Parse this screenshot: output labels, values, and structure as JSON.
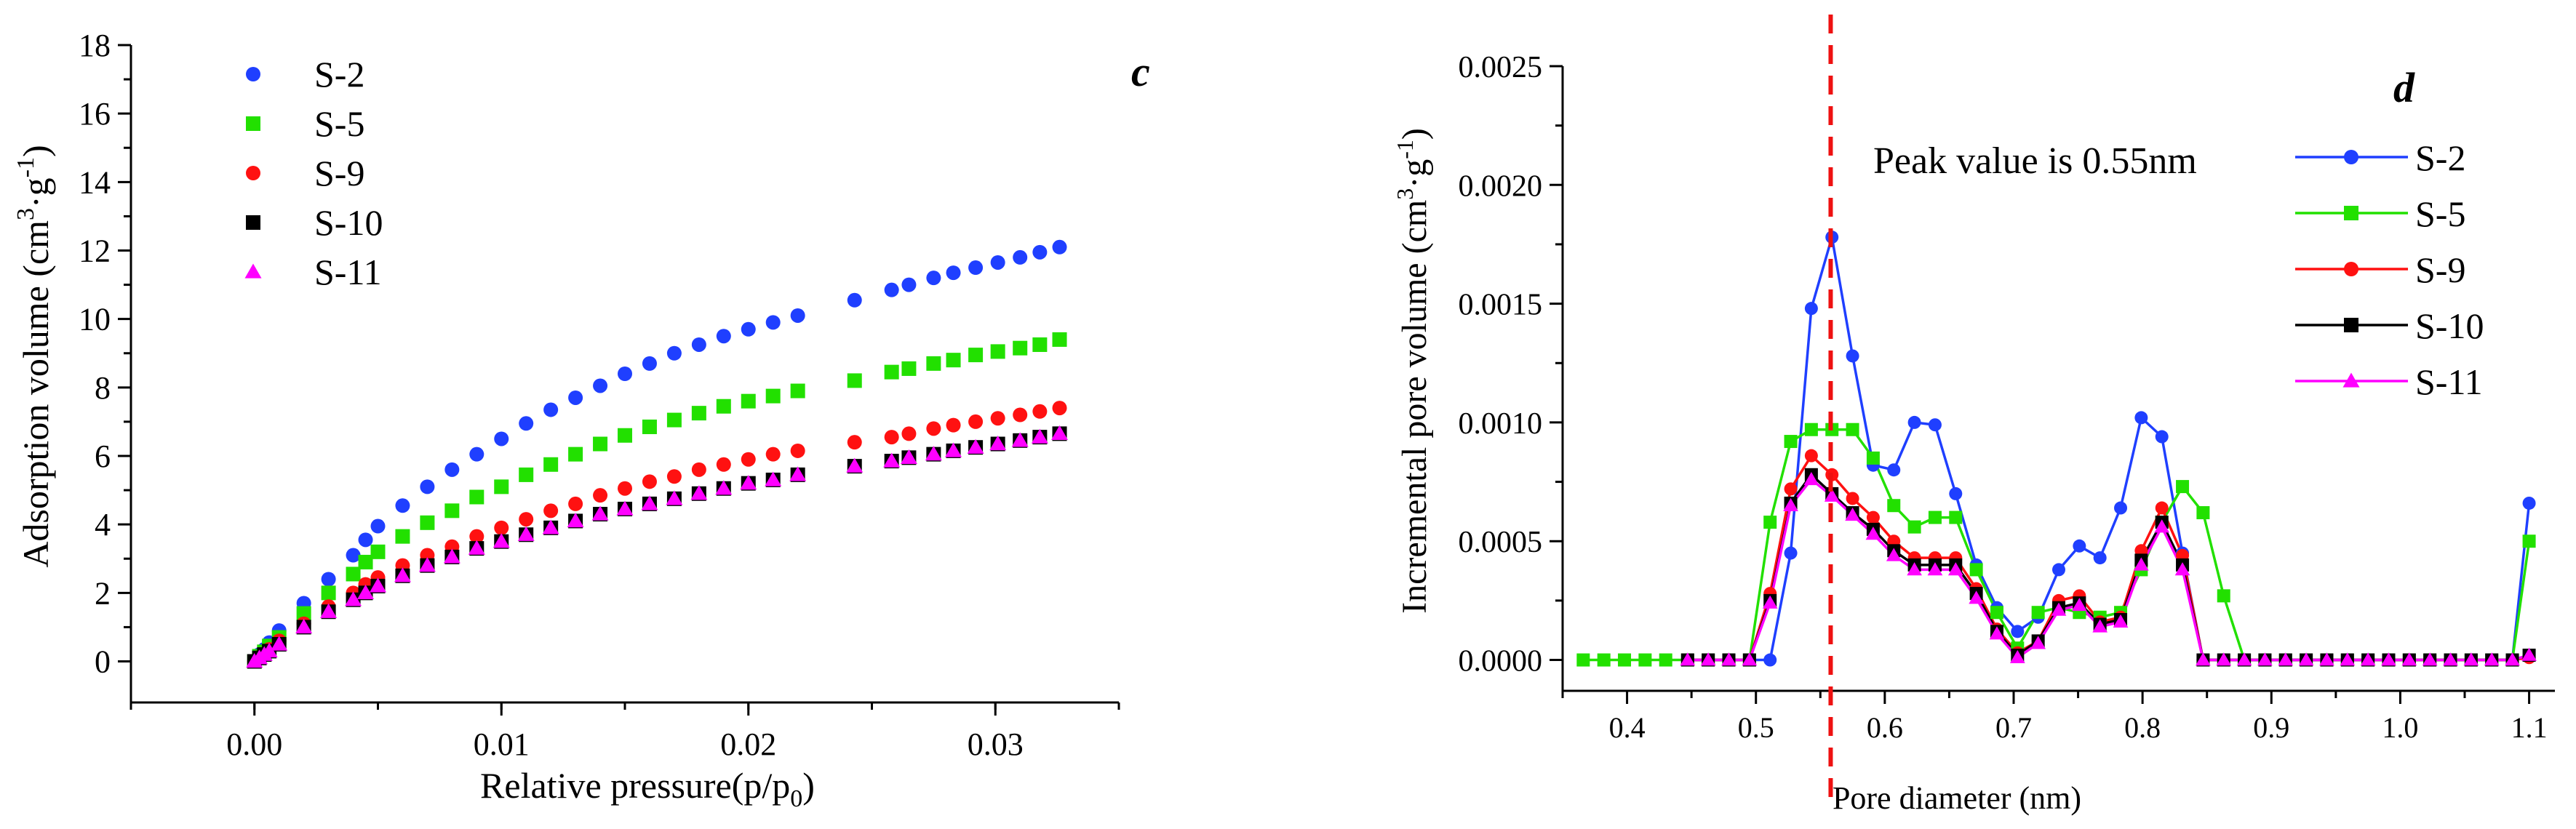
{
  "chart_data": [
    {
      "panel_label": "c",
      "type": "scatter",
      "title": "",
      "xlabel": "Relative pressure(p/p",
      "xlabel_sub": "0",
      "xlabel_tail": ")",
      "ylabel": "Adsorption volume (cm",
      "ylabel_sup1": "3",
      "ylabel_mid": "·g",
      "ylabel_sup2": "-1",
      "ylabel_tail": ")",
      "xlim": [
        -0.005,
        0.035
      ],
      "ylim": [
        -1.2,
        18
      ],
      "x_ticks": [
        0.0,
        0.01,
        0.02,
        0.03
      ],
      "x_tick_labels": [
        "0.00",
        "0.01",
        "0.02",
        "0.03"
      ],
      "y_ticks": [
        0,
        2,
        4,
        6,
        8,
        10,
        12,
        14,
        16,
        18
      ],
      "y_tick_labels": [
        "0",
        "2",
        "4",
        "6",
        "8",
        "10",
        "12",
        "14",
        "16",
        "18"
      ],
      "legend_position": "top-left",
      "x": [
        0.0,
        0.0002,
        0.0004,
        0.0006,
        0.001,
        0.002,
        0.003,
        0.004,
        0.0045,
        0.005,
        0.006,
        0.007,
        0.008,
        0.009,
        0.01,
        0.011,
        0.012,
        0.013,
        0.014,
        0.015,
        0.016,
        0.017,
        0.018,
        0.019,
        0.02,
        0.021,
        0.022,
        0.0243,
        0.0258,
        0.0265,
        0.0275,
        0.0283,
        0.0292,
        0.0301,
        0.031,
        0.0318,
        0.0326
      ],
      "series": [
        {
          "name": "S-2",
          "marker": "circle",
          "color": "#1f3fff",
          "values": [
            0.0,
            0.2,
            0.35,
            0.55,
            0.9,
            1.7,
            2.4,
            3.1,
            3.55,
            3.95,
            4.55,
            5.1,
            5.6,
            6.05,
            6.5,
            6.95,
            7.35,
            7.7,
            8.05,
            8.4,
            8.7,
            9.0,
            9.25,
            9.5,
            9.7,
            9.9,
            10.1,
            10.55,
            10.85,
            11.0,
            11.2,
            11.35,
            11.5,
            11.65,
            11.8,
            11.95,
            12.1
          ]
        },
        {
          "name": "S-5",
          "marker": "square",
          "color": "#22e000",
          "values": [
            0.0,
            0.15,
            0.28,
            0.45,
            0.7,
            1.4,
            2.0,
            2.55,
            2.9,
            3.2,
            3.65,
            4.05,
            4.4,
            4.8,
            5.1,
            5.45,
            5.75,
            6.05,
            6.35,
            6.6,
            6.85,
            7.05,
            7.25,
            7.45,
            7.6,
            7.75,
            7.9,
            8.2,
            8.45,
            8.55,
            8.7,
            8.8,
            8.95,
            9.05,
            9.15,
            9.25,
            9.4
          ]
        },
        {
          "name": "S-9",
          "marker": "circle",
          "color": "#ff1111",
          "values": [
            0.0,
            0.12,
            0.22,
            0.35,
            0.6,
            1.1,
            1.6,
            2.0,
            2.25,
            2.45,
            2.8,
            3.1,
            3.35,
            3.65,
            3.9,
            4.15,
            4.4,
            4.6,
            4.85,
            5.05,
            5.25,
            5.4,
            5.6,
            5.75,
            5.9,
            6.05,
            6.15,
            6.4,
            6.55,
            6.65,
            6.8,
            6.9,
            7.0,
            7.1,
            7.2,
            7.3,
            7.4
          ]
        },
        {
          "name": "S-10",
          "marker": "square",
          "color": "#000000",
          "values": [
            0.0,
            0.1,
            0.2,
            0.3,
            0.5,
            1.0,
            1.45,
            1.8,
            2.0,
            2.2,
            2.5,
            2.8,
            3.05,
            3.3,
            3.5,
            3.7,
            3.9,
            4.1,
            4.3,
            4.45,
            4.6,
            4.75,
            4.9,
            5.05,
            5.2,
            5.3,
            5.45,
            5.7,
            5.85,
            5.95,
            6.05,
            6.15,
            6.25,
            6.35,
            6.45,
            6.55,
            6.65
          ]
        },
        {
          "name": "S-11",
          "marker": "triangle",
          "color": "#ff00ff",
          "values": [
            0.0,
            0.1,
            0.2,
            0.3,
            0.5,
            1.0,
            1.45,
            1.8,
            2.0,
            2.2,
            2.5,
            2.8,
            3.05,
            3.3,
            3.5,
            3.7,
            3.9,
            4.1,
            4.3,
            4.45,
            4.6,
            4.75,
            4.9,
            5.05,
            5.2,
            5.3,
            5.45,
            5.7,
            5.85,
            5.95,
            6.05,
            6.15,
            6.25,
            6.35,
            6.45,
            6.55,
            6.65
          ]
        }
      ]
    },
    {
      "panel_label": "d",
      "type": "line",
      "title": "",
      "xlabel": "Pore diameter (nm)",
      "ylabel": "Incremental pore volume (cm",
      "ylabel_sup1": "3",
      "ylabel_mid": "·g",
      "ylabel_sup2": "-1",
      "ylabel_tail": ")",
      "xlim": [
        0.35,
        1.12
      ],
      "ylim": [
        -0.00013,
        0.0025
      ],
      "x_ticks": [
        0.4,
        0.5,
        0.6,
        0.7,
        0.8,
        0.9,
        1.0,
        1.1
      ],
      "x_tick_labels": [
        "0.4",
        "0.5",
        "0.6",
        "0.7",
        "0.8",
        "0.9",
        "1.0",
        "1.1"
      ],
      "y_ticks": [
        0.0,
        0.0005,
        0.001,
        0.0015,
        0.002,
        0.0025
      ],
      "y_tick_labels": [
        "0.0000",
        "0.0005",
        "0.0010",
        "0.0015",
        "0.0020",
        "0.0025"
      ],
      "annotation": "Peak value is 0.55nm",
      "peak_line_x": 0.558,
      "legend_position": "top-right",
      "x": [
        0.366,
        0.382,
        0.398,
        0.414,
        0.43,
        0.447,
        0.463,
        0.479,
        0.495,
        0.511,
        0.527,
        0.543,
        0.559,
        0.575,
        0.591,
        0.607,
        0.623,
        0.639,
        0.655,
        0.671,
        0.687,
        0.703,
        0.719,
        0.735,
        0.751,
        0.767,
        0.783,
        0.799,
        0.815,
        0.831,
        0.847,
        0.863,
        0.879,
        0.895,
        0.911,
        0.927,
        0.943,
        0.959,
        0.975,
        0.991,
        1.007,
        1.023,
        1.039,
        1.055,
        1.071,
        1.087,
        1.1
      ],
      "series": [
        {
          "name": "S-2",
          "marker": "circle",
          "color": "#1f3fff",
          "values": [
            null,
            null,
            null,
            null,
            null,
            0.0,
            0.0,
            0.0,
            0.0,
            0.0,
            0.00045,
            0.00148,
            0.00178,
            0.00128,
            0.00082,
            0.0008,
            0.001,
            0.00099,
            0.0007,
            0.0004,
            0.00022,
            0.00012,
            0.00018,
            0.00038,
            0.00048,
            0.00043,
            0.00064,
            0.00102,
            0.00094,
            0.00045,
            0.0,
            0.0,
            0.0,
            0.0,
            0.0,
            0.0,
            0.0,
            0.0,
            0.0,
            0.0,
            0.0,
            0.0,
            0.0,
            0.0,
            0.0,
            0.0,
            0.00066
          ]
        },
        {
          "name": "S-5",
          "marker": "square",
          "color": "#22e000",
          "values": [
            0.0,
            0.0,
            0.0,
            0.0,
            0.0,
            0.0,
            0.0,
            0.0,
            0.0,
            0.00058,
            0.00092,
            0.00097,
            0.00097,
            0.00097,
            0.00085,
            0.00065,
            0.00056,
            0.0006,
            0.0006,
            0.00038,
            0.0002,
            5e-05,
            0.0002,
            0.00022,
            0.0002,
            0.00018,
            0.0002,
            0.00038,
            0.00058,
            0.00073,
            0.00062,
            0.00027,
            0.0,
            0.0,
            0.0,
            0.0,
            0.0,
            0.0,
            0.0,
            0.0,
            0.0,
            0.0,
            0.0,
            0.0,
            0.0,
            0.0,
            0.0005
          ]
        },
        {
          "name": "S-9",
          "marker": "circle",
          "color": "#ff1111",
          "values": [
            null,
            null,
            null,
            null,
            null,
            0.0,
            0.0,
            0.0,
            0.0,
            0.00028,
            0.00072,
            0.00086,
            0.00078,
            0.00068,
            0.0006,
            0.0005,
            0.00043,
            0.00043,
            0.00043,
            0.0003,
            0.00013,
            3e-05,
            8e-05,
            0.00025,
            0.00027,
            0.00016,
            0.00018,
            0.00046,
            0.00064,
            0.00044,
            0.0,
            0.0,
            0.0,
            0.0,
            0.0,
            0.0,
            0.0,
            0.0,
            0.0,
            0.0,
            0.0,
            0.0,
            0.0,
            0.0,
            0.0,
            0.0,
            1e-05
          ]
        },
        {
          "name": "S-10",
          "marker": "square",
          "color": "#000000",
          "values": [
            null,
            null,
            null,
            null,
            null,
            0.0,
            0.0,
            0.0,
            0.0,
            0.00025,
            0.00066,
            0.00078,
            0.0007,
            0.00062,
            0.00055,
            0.00046,
            0.0004,
            0.0004,
            0.0004,
            0.00028,
            0.00012,
            2e-05,
            8e-05,
            0.00022,
            0.00024,
            0.00015,
            0.00017,
            0.00042,
            0.00058,
            0.0004,
            0.0,
            0.0,
            0.0,
            0.0,
            0.0,
            0.0,
            0.0,
            0.0,
            0.0,
            0.0,
            0.0,
            0.0,
            0.0,
            0.0,
            0.0,
            0.0,
            2e-05
          ]
        },
        {
          "name": "S-11",
          "marker": "triangle",
          "color": "#ff00ff",
          "values": [
            null,
            null,
            null,
            null,
            null,
            0.0,
            0.0,
            0.0,
            0.0,
            0.00024,
            0.00065,
            0.00076,
            0.00069,
            0.00061,
            0.00053,
            0.00044,
            0.00038,
            0.00038,
            0.00038,
            0.00026,
            0.00011,
            1e-05,
            7e-05,
            0.00021,
            0.00023,
            0.00014,
            0.00016,
            0.0004,
            0.00056,
            0.00038,
            0.0,
            0.0,
            0.0,
            0.0,
            0.0,
            0.0,
            0.0,
            0.0,
            0.0,
            0.0,
            0.0,
            0.0,
            0.0,
            0.0,
            0.0,
            0.0,
            2e-05
          ]
        }
      ]
    }
  ]
}
